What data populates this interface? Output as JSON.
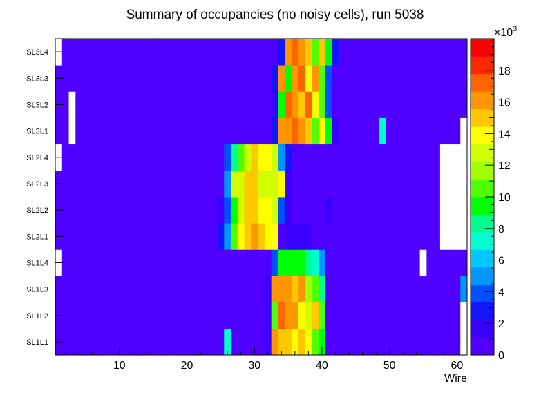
{
  "chart_data": {
    "type": "heatmap",
    "title": "Summary of occupancies (no noisy cells), run 5038",
    "xlabel": "Wire",
    "ylabel": "",
    "x_range": [
      0.5,
      61.5
    ],
    "x_ticks": [
      10,
      20,
      30,
      40,
      50,
      60
    ],
    "layers": [
      "SL1L1",
      "SL1L2",
      "SL1L3",
      "SL1L4",
      "SL2L1",
      "SL2L2",
      "SL2L3",
      "SL2L4",
      "SL3L1",
      "SL3L2",
      "SL3L3",
      "SL3L4"
    ],
    "z_range": [
      0,
      20
    ],
    "z_multiplier": "×10",
    "z_exponent": "3",
    "z_ticks": [
      "0",
      "2",
      "4",
      "6",
      "8",
      "10",
      "12",
      "14",
      "16",
      "18"
    ],
    "palette": [
      "#5000ff",
      "#3a00ff",
      "#1414ff",
      "#0050ff",
      "#0096ff",
      "#00c8ff",
      "#00ffd0",
      "#00ff8c",
      "#00ff00",
      "#50ff00",
      "#a0ff00",
      "#d2ff00",
      "#ffff00",
      "#ffc800",
      "#ff9600",
      "#ff6400",
      "#ff2800",
      "#ff0000"
    ],
    "z_units_note": "values in thousands of hits; -1 = empty cell (white)",
    "z": [
      [
        0,
        0,
        0,
        0,
        0,
        0,
        0,
        0,
        0,
        0,
        0,
        0,
        0,
        0,
        0,
        0,
        0,
        0,
        0,
        0,
        0,
        0,
        0,
        0,
        0,
        7.5,
        1,
        1,
        1,
        1,
        1,
        2,
        16.5,
        15.5,
        14.5,
        13.5,
        15,
        13.5,
        11,
        9,
        1,
        1,
        1,
        0,
        0,
        0,
        0,
        0,
        0,
        0,
        0,
        0,
        0,
        0,
        0,
        0,
        0,
        0,
        0,
        0,
        -1
      ],
      [
        0,
        0,
        0,
        0,
        0,
        0,
        0,
        0,
        0,
        0,
        0,
        0,
        0,
        0,
        0,
        0,
        0,
        0,
        0,
        0,
        0,
        0,
        0,
        0,
        0,
        1,
        1,
        1,
        1,
        1,
        1,
        2,
        11,
        17.5,
        16,
        16,
        14,
        12.5,
        15.5,
        10,
        1,
        1,
        1,
        0,
        0,
        0,
        0,
        0,
        0,
        0,
        0,
        0,
        0,
        0,
        0,
        0,
        0,
        0,
        0,
        0,
        -1
      ],
      [
        0,
        0,
        0,
        0,
        0,
        0,
        0,
        0,
        0,
        0,
        0,
        0,
        0,
        0,
        0,
        0,
        0,
        0,
        0,
        0,
        0,
        0,
        0,
        0,
        0,
        1,
        1,
        1,
        1,
        1,
        1,
        2,
        16.5,
        16.5,
        16.5,
        14.5,
        16,
        11.5,
        10.5,
        8,
        1,
        1,
        1,
        0,
        0,
        0,
        0,
        0,
        0,
        0,
        0,
        0,
        0,
        0,
        0,
        0,
        0,
        0,
        0,
        0,
        4.5
      ],
      [
        -1,
        0,
        0,
        0,
        0,
        0,
        0,
        0,
        0,
        0,
        0,
        0,
        0,
        0,
        0,
        0,
        0,
        0,
        0,
        0,
        0,
        0,
        0,
        0,
        0,
        0,
        0,
        0,
        0,
        0,
        0,
        1,
        3.5,
        9,
        9,
        9,
        9,
        8.5,
        7.5,
        5,
        0,
        0,
        0,
        0,
        0,
        0,
        0,
        0,
        0,
        0,
        0,
        0,
        0,
        0,
        -1,
        0,
        0,
        0,
        0,
        0,
        0
      ],
      [
        0,
        0,
        0,
        0,
        0,
        0,
        0,
        0,
        0,
        0,
        0,
        0,
        0,
        0,
        0,
        0,
        0,
        0,
        0,
        0,
        0,
        0,
        1,
        1,
        3,
        5,
        10,
        14,
        15,
        16,
        15.5,
        14,
        13.5,
        0,
        2,
        2,
        2,
        2,
        1,
        1,
        1,
        1,
        1,
        1,
        1,
        0,
        0,
        0,
        0,
        0,
        0,
        0,
        0,
        0,
        0,
        0,
        0,
        -1,
        -1,
        -1,
        -1
      ],
      [
        0,
        0,
        0,
        0,
        0,
        0,
        0,
        0,
        0,
        0,
        0,
        0,
        0,
        0,
        0,
        0,
        0,
        0,
        0,
        0,
        0,
        0,
        0,
        1,
        2,
        3.5,
        9,
        13,
        15,
        15,
        13.5,
        13.5,
        13,
        4,
        1.5,
        1,
        1,
        1,
        1,
        1,
        2,
        0,
        0,
        0,
        0,
        0,
        0,
        0,
        0,
        0,
        0,
        0,
        0,
        0,
        0,
        0,
        0,
        -1,
        -1,
        -1,
        -1
      ],
      [
        0,
        0,
        0,
        0,
        0,
        0,
        0,
        0,
        0,
        0,
        0,
        0,
        0,
        0,
        0,
        0,
        0,
        0,
        0,
        0,
        0,
        0,
        0,
        0,
        1,
        5,
        12.5,
        13,
        15,
        15,
        13,
        13,
        13,
        14,
        2,
        1,
        0,
        0,
        0,
        0,
        0,
        0,
        0,
        0,
        0,
        0,
        0,
        0,
        0,
        0,
        0,
        0,
        0,
        0,
        0,
        0,
        0,
        -1,
        -1,
        -1,
        -1
      ],
      [
        -1,
        0,
        0,
        0,
        0,
        0,
        0,
        0,
        0,
        0,
        0,
        0,
        0,
        0,
        0,
        0,
        0,
        0,
        0,
        0,
        0,
        0,
        0,
        1,
        1,
        3.5,
        8,
        11,
        13,
        14.5,
        13.5,
        13.5,
        13,
        5,
        2.5,
        1,
        0,
        0,
        0,
        0,
        0,
        0,
        0,
        0,
        0,
        0,
        0,
        0,
        0,
        0,
        0,
        0,
        0,
        0,
        0,
        0,
        0,
        -1,
        -1,
        -1,
        -1
      ],
      [
        0,
        0,
        -1,
        0,
        0,
        0,
        0,
        0,
        0,
        0,
        0,
        0,
        0,
        0,
        0,
        0,
        0,
        0,
        0,
        0,
        0,
        0,
        0,
        0,
        0,
        0,
        0,
        0,
        0,
        1,
        1,
        1,
        3,
        16.5,
        16.5,
        17.5,
        16.5,
        15,
        11,
        13.5,
        9,
        2,
        1,
        1,
        0,
        0,
        0,
        0,
        7.5,
        0,
        0,
        0,
        0,
        0,
        0,
        0,
        0,
        0,
        0,
        0,
        -1
      ],
      [
        0,
        0,
        -1,
        0,
        0,
        0,
        0,
        0,
        0,
        0,
        0,
        0,
        0,
        0,
        0,
        0,
        0,
        0,
        0,
        0,
        0,
        0,
        0,
        0,
        0,
        0,
        0,
        0,
        0,
        0,
        1,
        1,
        2,
        9,
        17.5,
        16.5,
        15.5,
        17,
        14,
        10,
        4,
        1,
        1,
        0,
        0,
        0,
        0,
        0,
        0,
        0,
        0,
        0,
        0,
        0,
        0,
        0,
        0,
        0,
        0,
        0,
        0
      ],
      [
        0,
        0,
        0,
        0,
        0,
        0,
        0,
        0,
        0,
        0,
        0,
        0,
        0,
        0,
        0,
        0,
        0,
        0,
        0,
        0,
        0,
        0,
        0,
        0,
        0,
        0,
        0,
        0,
        0,
        1,
        1,
        1,
        3,
        16.5,
        9,
        16.5,
        17.5,
        14,
        16.5,
        10.5,
        3.5,
        1,
        1,
        0,
        0,
        0,
        0,
        0,
        0,
        0,
        0,
        0,
        0,
        0,
        0,
        0,
        0,
        0,
        0,
        0,
        0
      ],
      [
        -1,
        0,
        0,
        0,
        0,
        0,
        0,
        0,
        0,
        0,
        0,
        0,
        0,
        0,
        0,
        0,
        0,
        0,
        0,
        0,
        0,
        0,
        0,
        0,
        0,
        0,
        0,
        0,
        0,
        0,
        1,
        1,
        1,
        3,
        16.5,
        17.5,
        16.5,
        15,
        11,
        15.5,
        9,
        3,
        1,
        1,
        0,
        0,
        0,
        0,
        0,
        0,
        0,
        0,
        0,
        0,
        0,
        0,
        0,
        0,
        0,
        0,
        0
      ]
    ]
  }
}
